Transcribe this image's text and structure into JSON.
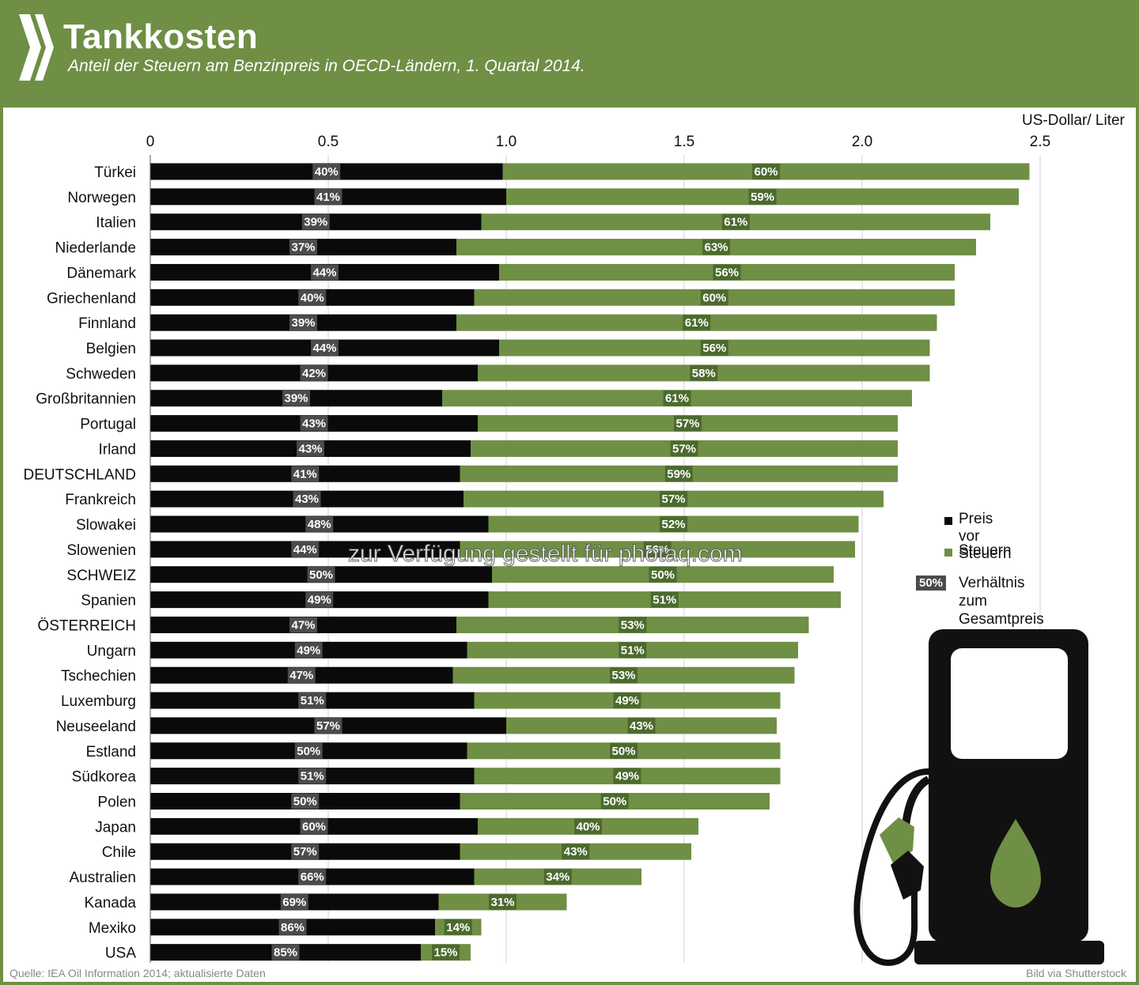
{
  "header": {
    "title": "Tankkosten",
    "subtitle": "Anteil der Steuern am Benzinpreis in OECD-Ländern, 1. Quartal 2014."
  },
  "colors": {
    "header_bg": "#6f8f45",
    "pre_tax": "#0a0a0a",
    "tax": "#6f8f45",
    "badge_dark": "#4b4b4b",
    "badge_green": "#4c6a2e"
  },
  "chart_data": {
    "type": "bar",
    "orientation": "horizontal",
    "stacked": true,
    "unit_label": "US-Dollar/ Liter",
    "xlim": [
      0,
      2.5
    ],
    "x_ticks": [
      "0",
      "0.5",
      "1.0",
      "1.5",
      "2.0",
      "2.5"
    ],
    "x_tick_values": [
      0,
      0.5,
      1.0,
      1.5,
      2.0,
      2.5
    ],
    "categories": [
      "Türkei",
      "Norwegen",
      "Italien",
      "Niederlande",
      "Dänemark",
      "Griechenland",
      "Finnland",
      "Belgien",
      "Schweden",
      "Großbritannien",
      "Portugal",
      "Irland",
      "DEUTSCHLAND",
      "Frankreich",
      "Slowakei",
      "Slowenien",
      "SCHWEIZ",
      "Spanien",
      "ÖSTERREICH",
      "Ungarn",
      "Tschechien",
      "Luxemburg",
      "Neuseeland",
      "Estland",
      "Südkorea",
      "Polen",
      "Japan",
      "Chile",
      "Australien",
      "Kanada",
      "Mexiko",
      "USA"
    ],
    "series": [
      {
        "name": "Preis vor Steuern",
        "values": [
          0.99,
          1.0,
          0.93,
          0.86,
          0.98,
          0.91,
          0.86,
          0.98,
          0.92,
          0.82,
          0.92,
          0.9,
          0.87,
          0.88,
          0.95,
          0.87,
          0.96,
          0.95,
          0.86,
          0.89,
          0.85,
          0.91,
          1.0,
          0.89,
          0.91,
          0.87,
          0.92,
          0.87,
          0.91,
          0.81,
          0.8,
          0.76
        ],
        "labels": [
          "40%",
          "41%",
          "39%",
          "37%",
          "44%",
          "40%",
          "39%",
          "44%",
          "42%",
          "39%",
          "43%",
          "43%",
          "41%",
          "43%",
          "48%",
          "44%",
          "50%",
          "49%",
          "47%",
          "49%",
          "47%",
          "51%",
          "57%",
          "50%",
          "51%",
          "50%",
          "60%",
          "57%",
          "66%",
          "69%",
          "86%",
          "85%"
        ]
      },
      {
        "name": "Steuern",
        "values": [
          1.48,
          1.44,
          1.43,
          1.46,
          1.28,
          1.35,
          1.35,
          1.21,
          1.27,
          1.32,
          1.18,
          1.2,
          1.23,
          1.18,
          1.04,
          1.11,
          0.96,
          0.99,
          0.99,
          0.93,
          0.96,
          0.86,
          0.76,
          0.88,
          0.86,
          0.87,
          0.62,
          0.65,
          0.47,
          0.36,
          0.13,
          0.14
        ],
        "labels": [
          "60%",
          "59%",
          "61%",
          "63%",
          "56%",
          "60%",
          "61%",
          "56%",
          "58%",
          "61%",
          "57%",
          "57%",
          "59%",
          "57%",
          "52%",
          "56%",
          "50%",
          "51%",
          "53%",
          "51%",
          "53%",
          "49%",
          "43%",
          "50%",
          "49%",
          "50%",
          "40%",
          "43%",
          "34%",
          "31%",
          "14%",
          "15%"
        ]
      }
    ]
  },
  "legend": {
    "pre_tax": "Preis vor Steuern",
    "tax": "Steuern",
    "badge_example": "50%",
    "ratio_line1": "Verhältnis zum",
    "ratio_line2": "Gesamtpreis"
  },
  "watermark": "zur Verfügung gestellt für photaq.com",
  "footer": {
    "source": "Quelle: IEA Oil Information 2014; aktualisierte Daten",
    "credit": "Bild via Shutterstock"
  },
  "icons": {
    "logo": "oecd-chevron-logo",
    "pump": "fuel-pump-icon",
    "drop": "fuel-drop-icon"
  }
}
